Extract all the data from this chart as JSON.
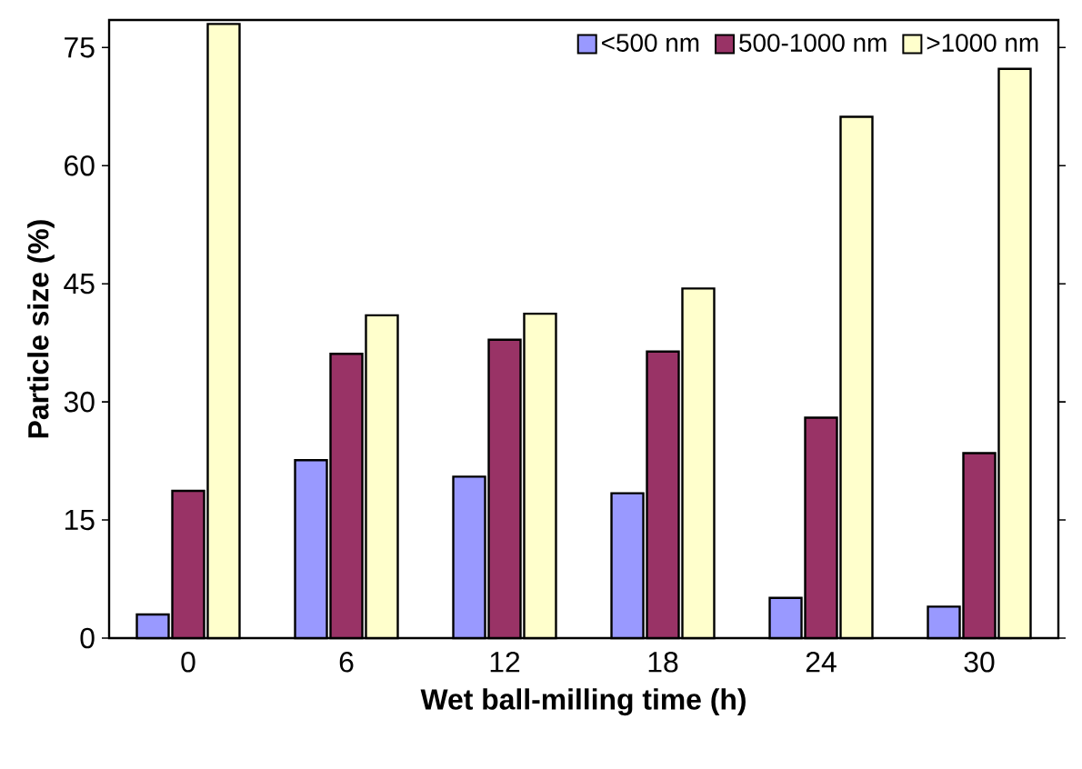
{
  "chart_data": {
    "type": "bar",
    "xlabel": "Wet ball-milling time (h)",
    "ylabel": "Particle size (%)",
    "categories": [
      "0",
      "6",
      "12",
      "18",
      "24",
      "30"
    ],
    "series": [
      {
        "name": "<500 nm",
        "color": "#9999ff",
        "values": [
          3,
          22.6,
          20.5,
          18.4,
          5.1,
          4
        ]
      },
      {
        "name": "500-1000 nm",
        "color": "#993366",
        "values": [
          18.7,
          36.1,
          37.9,
          36.4,
          28,
          23.5
        ]
      },
      {
        "name": ">1000 nm",
        "color": "#ffffcc",
        "values": [
          78,
          41,
          41.2,
          44.4,
          66.2,
          72.3
        ]
      }
    ],
    "ylim": [
      0,
      78.5
    ],
    "yticks": [
      0,
      15,
      30,
      45,
      60,
      75
    ],
    "grid": false,
    "legend": "top right"
  }
}
